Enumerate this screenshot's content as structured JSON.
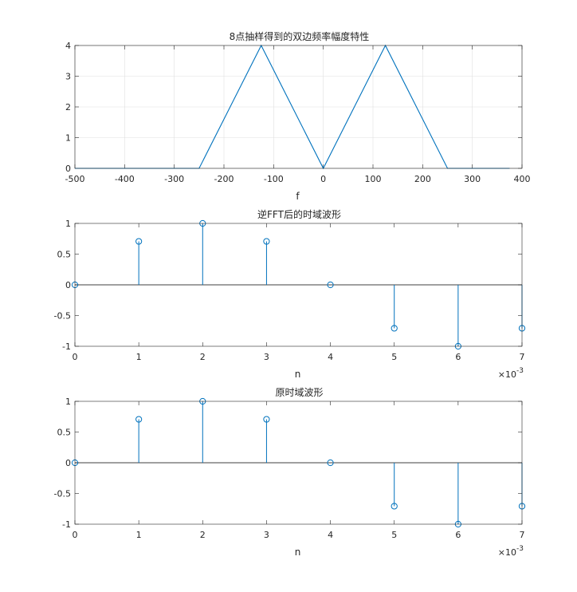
{
  "colors": {
    "series": "#0072BD",
    "axis": "#262626",
    "grid": "#DFDFDF",
    "zero_line": "#000000"
  },
  "chart_data": [
    {
      "type": "line",
      "title": "8点抽样得到的双边频率幅度特性",
      "xlabel": "f",
      "ylabel": "",
      "xlim": [
        -500,
        400
      ],
      "ylim": [
        0,
        4
      ],
      "xticks": [
        -500,
        -400,
        -300,
        -200,
        -100,
        0,
        100,
        200,
        300,
        400
      ],
      "yticks": [
        0,
        1,
        2,
        3,
        4
      ],
      "xticklabels": [
        "-500",
        "-400",
        "-300",
        "-200",
        "-100",
        "0",
        "100",
        "200",
        "300",
        "400"
      ],
      "yticklabels": [
        "0",
        "1",
        "2",
        "3",
        "4"
      ],
      "grid": true,
      "series": [
        {
          "x": [
            -500,
            -375,
            -250,
            -125,
            0,
            125,
            250,
            375
          ],
          "y": [
            0,
            0,
            0,
            4,
            0,
            4,
            0,
            0
          ]
        }
      ]
    },
    {
      "type": "stem",
      "title": "逆FFT后的时域波形",
      "xlabel": "n",
      "ylabel": "",
      "x_exponent": "×10",
      "x_exponent_power": "-3",
      "xlim": [
        0,
        0.007
      ],
      "ylim": [
        -1,
        1
      ],
      "xticks": [
        0,
        0.001,
        0.002,
        0.003,
        0.004,
        0.005,
        0.006,
        0.007
      ],
      "yticks": [
        -1,
        -0.5,
        0,
        0.5,
        1
      ],
      "xticklabels": [
        "0",
        "1",
        "2",
        "3",
        "4",
        "5",
        "6",
        "7"
      ],
      "yticklabels": [
        "-1",
        "-0.5",
        "0",
        "0.5",
        "1"
      ],
      "grid": false,
      "series": [
        {
          "x": [
            0,
            0.001,
            0.002,
            0.003,
            0.004,
            0.005,
            0.006,
            0.007
          ],
          "y": [
            0,
            0.707,
            1,
            0.707,
            0,
            -0.707,
            -1,
            -0.707
          ]
        }
      ]
    },
    {
      "type": "stem",
      "title": "原时域波形",
      "xlabel": "n",
      "ylabel": "",
      "x_exponent": "×10",
      "x_exponent_power": "-3",
      "xlim": [
        0,
        0.007
      ],
      "ylim": [
        -1,
        1
      ],
      "xticks": [
        0,
        0.001,
        0.002,
        0.003,
        0.004,
        0.005,
        0.006,
        0.007
      ],
      "yticks": [
        -1,
        -0.5,
        0,
        0.5,
        1
      ],
      "xticklabels": [
        "0",
        "1",
        "2",
        "3",
        "4",
        "5",
        "6",
        "7"
      ],
      "yticklabels": [
        "-1",
        "-0.5",
        "0",
        "0.5",
        "1"
      ],
      "grid": false,
      "series": [
        {
          "x": [
            0,
            0.001,
            0.002,
            0.003,
            0.004,
            0.005,
            0.006,
            0.007
          ],
          "y": [
            0,
            0.707,
            1,
            0.707,
            0,
            -0.707,
            -1,
            -0.707
          ]
        }
      ]
    }
  ]
}
